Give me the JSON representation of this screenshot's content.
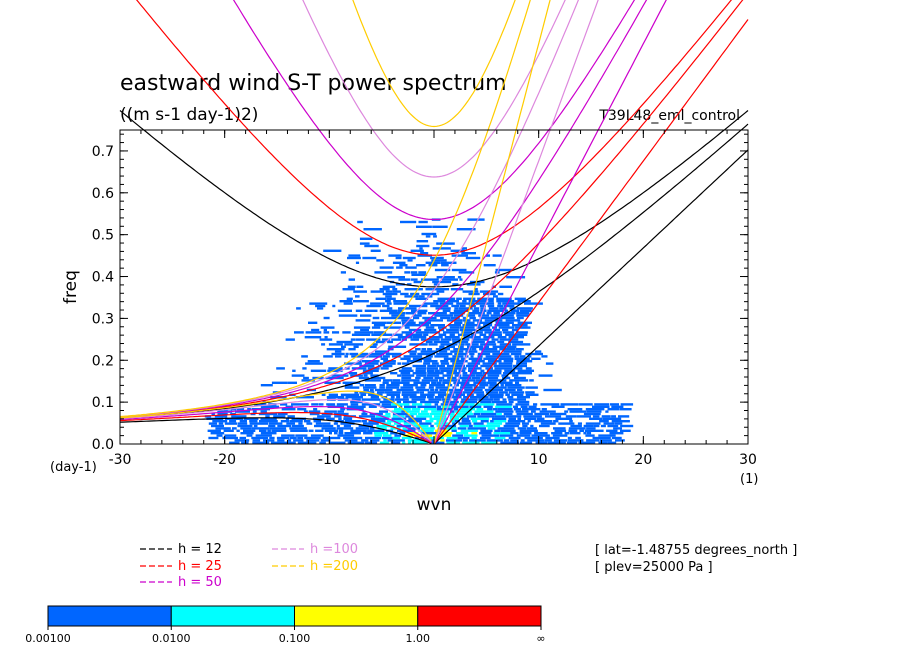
{
  "chart_data": {
    "type": "heatmap",
    "title": "eastward wind S-T power spectrum",
    "subtitle": "((m s-1 day-1)2)",
    "run_label": "T39L48_eml_control",
    "xlabel": "wvn",
    "x_unit_label": "(1)",
    "ylabel": "freq",
    "y_unit_label": "(day-1)",
    "xlim": [
      -30,
      30
    ],
    "ylim": [
      0,
      0.75
    ],
    "xticks": [
      "-30",
      "-20",
      "-10",
      "0",
      "10",
      "20",
      "30"
    ],
    "yticks": [
      "0.0",
      "0.1",
      "0.2",
      "0.3",
      "0.4",
      "0.5",
      "0.6",
      "0.7"
    ],
    "dispersion_curves": [
      {
        "label": "h = 12",
        "equivalent_depth": 12,
        "color": "#000000"
      },
      {
        "label": "h = 25",
        "equivalent_depth": 25,
        "color": "#ff0000"
      },
      {
        "label": "h = 50",
        "equivalent_depth": 50,
        "color": "#cc00cc"
      },
      {
        "label": "h =100",
        "equivalent_depth": 100,
        "color": "#dd88dd"
      },
      {
        "label": "h =200",
        "equivalent_depth": 200,
        "color": "#ffcc00"
      }
    ],
    "info": [
      "[ lat=-1.48755 degrees_north ]",
      "[ plev=25000 Pa ]"
    ],
    "colorbar": {
      "colors": [
        "#0066ff",
        "#00ffff",
        "#ffff00",
        "#ff0000"
      ],
      "labels": [
        "0.00100",
        "0.0100",
        "0.100",
        "1.00",
        "∞"
      ]
    }
  }
}
